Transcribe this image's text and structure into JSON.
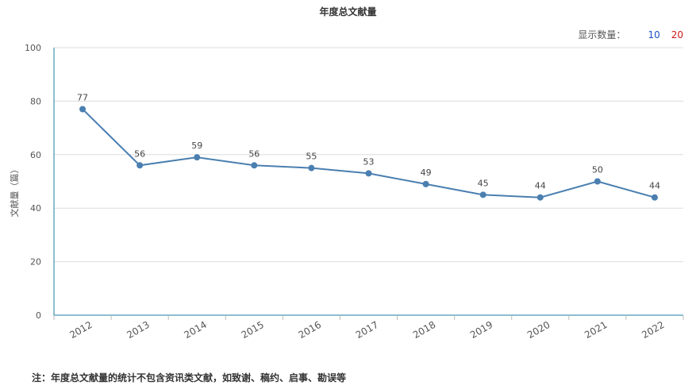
{
  "header": {
    "title": "年度总文献量"
  },
  "count_selector": {
    "label": "显示数量：",
    "options": [
      "10",
      "20"
    ],
    "colors": {
      "10": "#1f4fc8",
      "20": "#d01818"
    }
  },
  "footer": {
    "note": "注：年度总文献量的统计不包含资讯类文献，如致谢、稿约、启事、勘误等"
  },
  "chart_data": {
    "type": "line",
    "title": "年度总文献量",
    "xlabel": "",
    "ylabel": "文献量（篇）",
    "categories": [
      "2012",
      "2013",
      "2014",
      "2015",
      "2016",
      "2017",
      "2018",
      "2019",
      "2020",
      "2021",
      "2022"
    ],
    "series": [
      {
        "name": "",
        "values": [
          77,
          56,
          59,
          56,
          55,
          53,
          49,
          45,
          44,
          50,
          44
        ]
      }
    ],
    "ylim": [
      0,
      100
    ],
    "yticks": [
      0,
      20,
      40,
      60,
      80,
      100
    ],
    "grid": true,
    "line_color": "#4a7fb0",
    "axis_color": "#1a7fa0"
  }
}
